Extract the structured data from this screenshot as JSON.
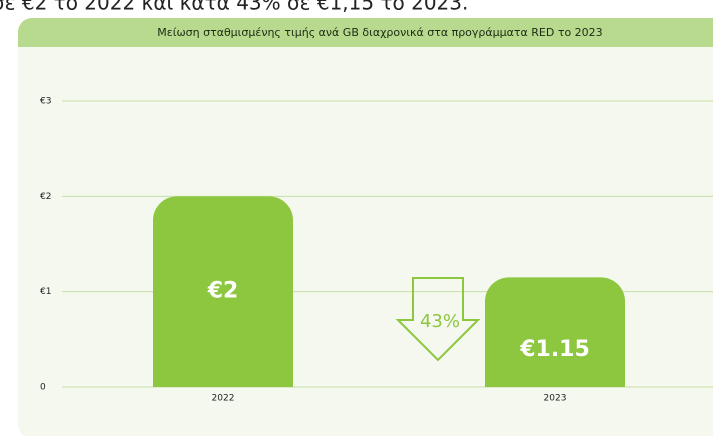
{
  "caption": "σε €2 το 2022 και κατά 43% σε €1,15 το 2023.",
  "chart_data": {
    "type": "bar",
    "title": "Μείωση σταθμισμένης τιμής ανά GB διαχρονικά στα προγράμματα RED το 2023",
    "categories": [
      "2022",
      "2023"
    ],
    "values": [
      2,
      1.15
    ],
    "value_labels": [
      "€2",
      "€1.15"
    ],
    "color": "#8dc63f",
    "ylim": [
      0,
      3
    ],
    "yticks": [
      {
        "value": 0,
        "label": "0"
      },
      {
        "value": 1,
        "label": "€1"
      },
      {
        "value": 2,
        "label": "€2"
      },
      {
        "value": 3,
        "label": "€3"
      }
    ],
    "grid": true,
    "annotation": "43%"
  }
}
